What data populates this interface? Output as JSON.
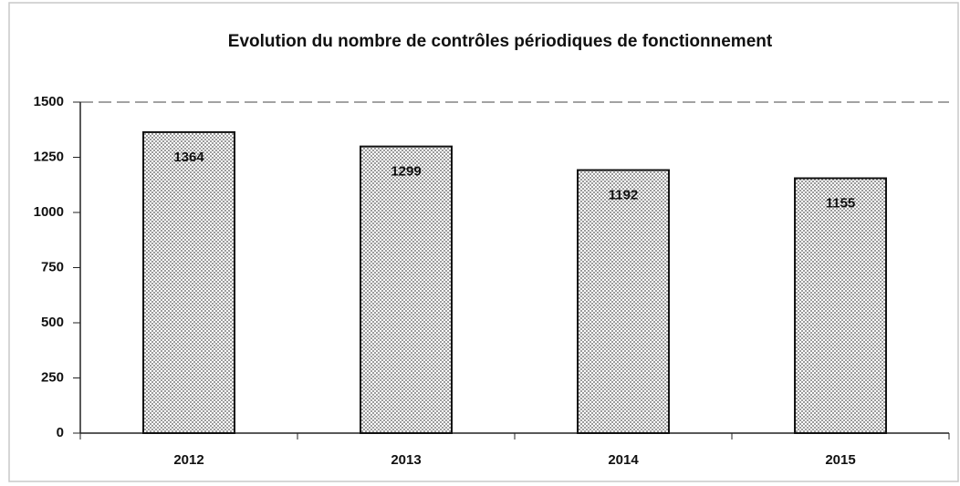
{
  "chart_data": {
    "type": "bar",
    "title": "Evolution du nombre de contrôles périodiques de fonctionnement",
    "categories": [
      "2012",
      "2013",
      "2014",
      "2015"
    ],
    "values": [
      1364,
      1299,
      1192,
      1155
    ],
    "color": "#555555",
    "ylim": [
      0,
      1500
    ],
    "yticks": [
      0,
      250,
      500,
      750,
      1000,
      1250,
      1500
    ],
    "grid": false
  }
}
